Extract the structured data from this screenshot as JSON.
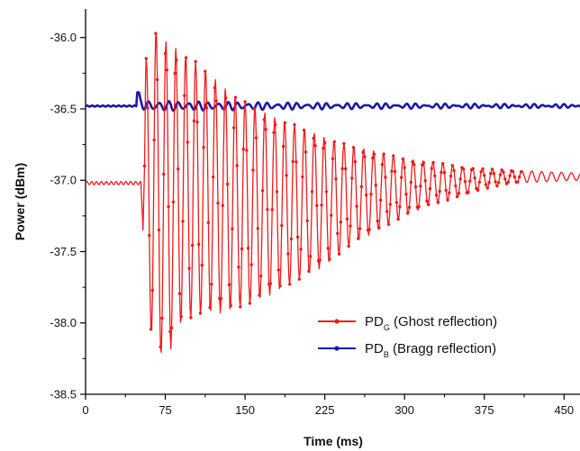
{
  "chart_data": {
    "type": "line",
    "xlabel": "Time (ms)",
    "ylabel": "Power (dBm)",
    "xlim": [
      0,
      465
    ],
    "ylim": [
      -38.5,
      -35.8
    ],
    "xticks": [
      0,
      75,
      150,
      225,
      300,
      375,
      450
    ],
    "xtick_labels": [
      "0",
      "75",
      "150",
      "225",
      "300",
      "375",
      "450"
    ],
    "yticks": [
      -38.5,
      -38.0,
      -37.5,
      -37.0,
      -36.5,
      -36.0
    ],
    "ytick_labels": [
      "-38.5",
      "-38.0",
      "-37.5",
      "-37.0",
      "-36.5",
      "-36.0"
    ],
    "grid": false,
    "legend_position": "bottom-right",
    "series": [
      {
        "name": "PD_G (Ghost reflection)",
        "legend_main": "PD",
        "legend_sub": "G",
        "legend_rest": " (Ghost reflection)",
        "color": "#ee1c1c",
        "baseline": -37.02,
        "onset": 53,
        "onset_drop": -37.35,
        "envelope": {
          "time": [
            55,
            64,
            69,
            75,
            90,
            110,
            130,
            150,
            175,
            200,
            225,
            250,
            275,
            300,
            325,
            350,
            375,
            400,
            465
          ],
          "max": [
            -36.2,
            -35.96,
            -35.93,
            -36.02,
            -36.1,
            -36.2,
            -36.35,
            -36.45,
            -36.55,
            -36.62,
            -36.7,
            -36.76,
            -36.8,
            -36.85,
            -36.87,
            -36.9,
            -36.92,
            -36.93,
            -36.95
          ],
          "min": [
            -37.4,
            -38.3,
            -38.2,
            -38.28,
            -38.0,
            -37.93,
            -37.93,
            -37.88,
            -37.8,
            -37.7,
            -37.6,
            -37.45,
            -37.35,
            -37.25,
            -37.17,
            -37.12,
            -37.06,
            -37.02,
            -37.0
          ]
        },
        "period_ms": 9.3
      },
      {
        "name": "PD_B (Bragg reflection)",
        "legend_main": "PD",
        "legend_sub": "B",
        "legend_rest": " (Bragg reflection)",
        "color": "#1a1aa6",
        "baseline": -36.48,
        "onset": 48,
        "peak": -36.38,
        "ripple_amplitude": 0.03,
        "period_ms": 9.3
      }
    ]
  }
}
